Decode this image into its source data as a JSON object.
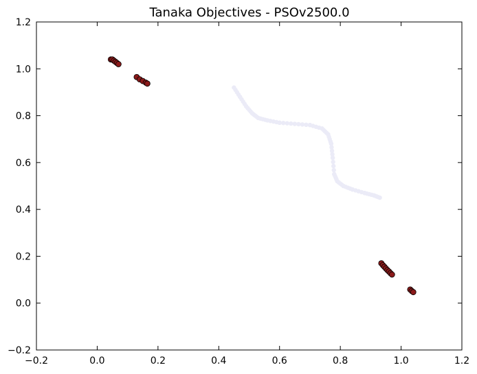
{
  "chart_data": {
    "type": "scatter",
    "title": "Tanaka Objectives - PSOv2500.0",
    "xlabel": "",
    "ylabel": "",
    "xlim": [
      -0.2,
      1.2
    ],
    "ylim": [
      -0.2,
      1.2
    ],
    "x_ticks": [
      -0.2,
      0.0,
      0.2,
      0.4,
      0.6,
      0.8,
      1.0,
      1.2
    ],
    "y_ticks": [
      -0.2,
      0.0,
      0.2,
      0.4,
      0.6,
      0.8,
      1.0,
      1.2
    ],
    "x_tick_labels": [
      "−0.2",
      "0.0",
      "0.2",
      "0.4",
      "0.6",
      "0.8",
      "1.0",
      "1.2"
    ],
    "y_tick_labels": [
      "−0.2",
      "0.0",
      "0.2",
      "0.4",
      "0.6",
      "0.8",
      "1.0",
      "1.2"
    ],
    "grid": false,
    "colors": {
      "front_points": "#8b1a1a",
      "front_edge": "#000000",
      "reference_curve": "#ebebf7"
    },
    "series": [
      {
        "x": [
          0.045,
          0.05,
          0.055,
          0.06,
          0.065,
          0.07,
          0.13,
          0.14,
          0.15,
          0.16,
          0.165,
          0.935,
          0.94,
          0.945,
          0.95,
          0.955,
          0.96,
          0.965,
          0.97,
          1.03,
          1.035,
          1.04
        ],
        "y": [
          1.04,
          1.04,
          1.035,
          1.03,
          1.025,
          1.02,
          0.965,
          0.955,
          0.948,
          0.941,
          0.937,
          0.17,
          0.162,
          0.155,
          0.148,
          0.141,
          0.135,
          0.128,
          0.122,
          0.058,
          0.052,
          0.047
        ]
      },
      {
        "x": [
          0.45,
          0.47,
          0.49,
          0.51,
          0.53,
          0.56,
          0.6,
          0.65,
          0.7,
          0.74,
          0.76,
          0.77,
          0.775,
          0.78,
          0.79,
          0.81,
          0.84,
          0.88,
          0.91,
          0.93
        ],
        "y": [
          0.92,
          0.88,
          0.84,
          0.81,
          0.79,
          0.78,
          0.77,
          0.765,
          0.76,
          0.745,
          0.72,
          0.68,
          0.62,
          0.55,
          0.52,
          0.5,
          0.485,
          0.47,
          0.46,
          0.45
        ]
      }
    ]
  }
}
